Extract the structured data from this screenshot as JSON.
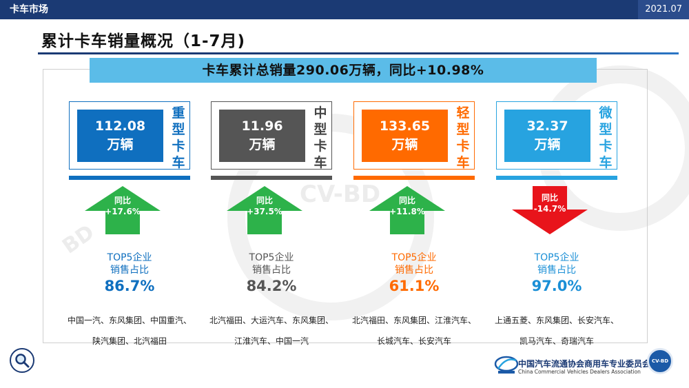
{
  "header": {
    "section": "卡车市场",
    "date": "2021.07"
  },
  "title": "累计卡车销量概况（1-7月)",
  "banner": "卡车累计总销量290.06万辆，同比+10.98%",
  "top5_label_line1": "TOP5企业",
  "top5_label_line2": "销售占比",
  "footer": {
    "org_cn": "中国汽车流通协会商用车专业委员会",
    "org_en": "China Commercial Vehicles Dealers Association",
    "badge": "CV-BD"
  },
  "segments": [
    {
      "name_chars": [
        "重",
        "型",
        "卡",
        "车"
      ],
      "value": "112.08",
      "unit": "万辆",
      "yoy_label": "同比",
      "yoy_text": "+17.6%",
      "yoy": 17.6,
      "direction": "up",
      "top5_share_text": "86.7%",
      "companies": [
        "中国一汽、东风集团、中国重汽、",
        "陕汽集团、北汽福田"
      ],
      "color": "#0f6fbf",
      "label_color": "#0f6fbf",
      "arrow_color": "#2db24a",
      "top5_color": "#0f6fbf"
    },
    {
      "name_chars": [
        "中",
        "型",
        "卡",
        "车"
      ],
      "value": "11.96",
      "unit": "万辆",
      "yoy_label": "同比",
      "yoy_text": "+37.5%",
      "yoy": 37.5,
      "direction": "up",
      "top5_share_text": "84.2%",
      "companies": [
        "北汽福田、大运汽车、东风集团、",
        "江淮汽车、中国一汽"
      ],
      "color": "#555555",
      "label_color": "#444444",
      "arrow_color": "#2db24a",
      "top5_color": "#555555"
    },
    {
      "name_chars": [
        "轻",
        "型",
        "卡",
        "车"
      ],
      "value": "133.65",
      "unit": "万辆",
      "yoy_label": "同比",
      "yoy_text": "+11.8%",
      "yoy": 11.8,
      "direction": "up",
      "top5_share_text": "61.1%",
      "companies": [
        "北汽福田、东风集团、江淮汽车、",
        "长城汽车、长安汽车"
      ],
      "color": "#ff6a00",
      "label_color": "#ff6a00",
      "arrow_color": "#2db24a",
      "top5_color": "#ff6a00"
    },
    {
      "name_chars": [
        "微",
        "型",
        "卡",
        "车"
      ],
      "value": "32.37",
      "unit": "万辆",
      "yoy_label": "同比",
      "yoy_text": "-14.7%",
      "yoy": -14.7,
      "direction": "down",
      "top5_share_text": "97.0%",
      "companies": [
        "上通五菱、东风集团、长安汽车、",
        "凯马汽车、奇瑞汽车"
      ],
      "color": "#27a3e0",
      "label_color": "#27a3e0",
      "arrow_color": "#e8141b",
      "top5_color": "#1a8fd6"
    }
  ],
  "chart_data": {
    "type": "table",
    "title": "累计卡车销量概况（1-7月)",
    "subtitle": "卡车累计总销量290.06万辆，同比+10.98%",
    "total_sales": 290.06,
    "total_yoy_percent": 10.98,
    "unit": "万辆",
    "categories": [
      "重型卡车",
      "中型卡车",
      "轻型卡车",
      "微型卡车"
    ],
    "series": [
      {
        "name": "",
        "values": [
          112.08,
          11.96,
          133.65,
          32.37
        ]
      },
      {
        "name": "同比",
        "values": [
          17.6,
          37.5,
          11.8,
          -14.7
        ]
      },
      {
        "name": "TOP5企业销售占比",
        "values": [
          86.7,
          84.2,
          61.1,
          97.0
        ]
      }
    ]
  }
}
